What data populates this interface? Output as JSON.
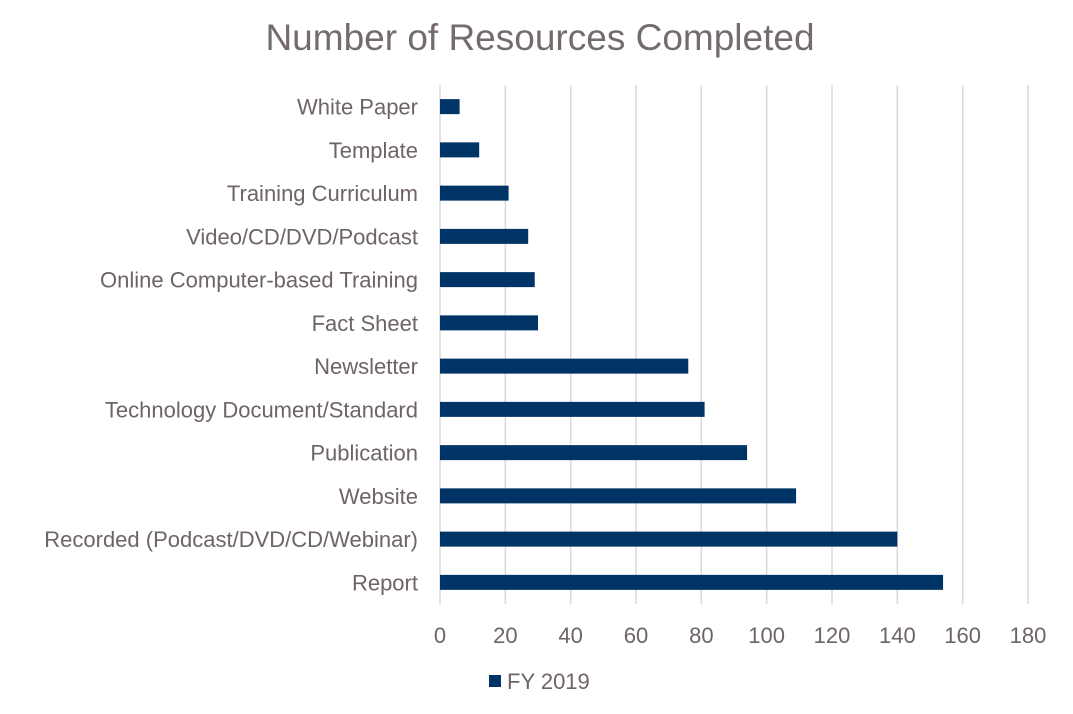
{
  "chart_data": {
    "type": "bar",
    "orientation": "horizontal",
    "title": "Number of Resources Completed",
    "xlabel": "",
    "ylabel": "",
    "categories": [
      "Report",
      "Recorded (Podcast/DVD/CD/Webinar)",
      "Website",
      "Publication",
      "Technology Document/Standard",
      "Newsletter",
      "Fact Sheet",
      "Online Computer-based Training",
      "Video/CD/DVD/Podcast",
      "Training Curriculum",
      "Template",
      "White Paper"
    ],
    "series": [
      {
        "name": "FY 2019",
        "color": "#003366",
        "values": [
          154,
          140,
          109,
          94,
          81,
          76,
          30,
          29,
          27,
          21,
          12,
          6
        ]
      }
    ],
    "xlim": [
      0,
      180
    ],
    "xticks": [
      0,
      20,
      40,
      60,
      80,
      100,
      120,
      140,
      160,
      180
    ],
    "grid": "vertical",
    "legend_position": "bottom"
  }
}
